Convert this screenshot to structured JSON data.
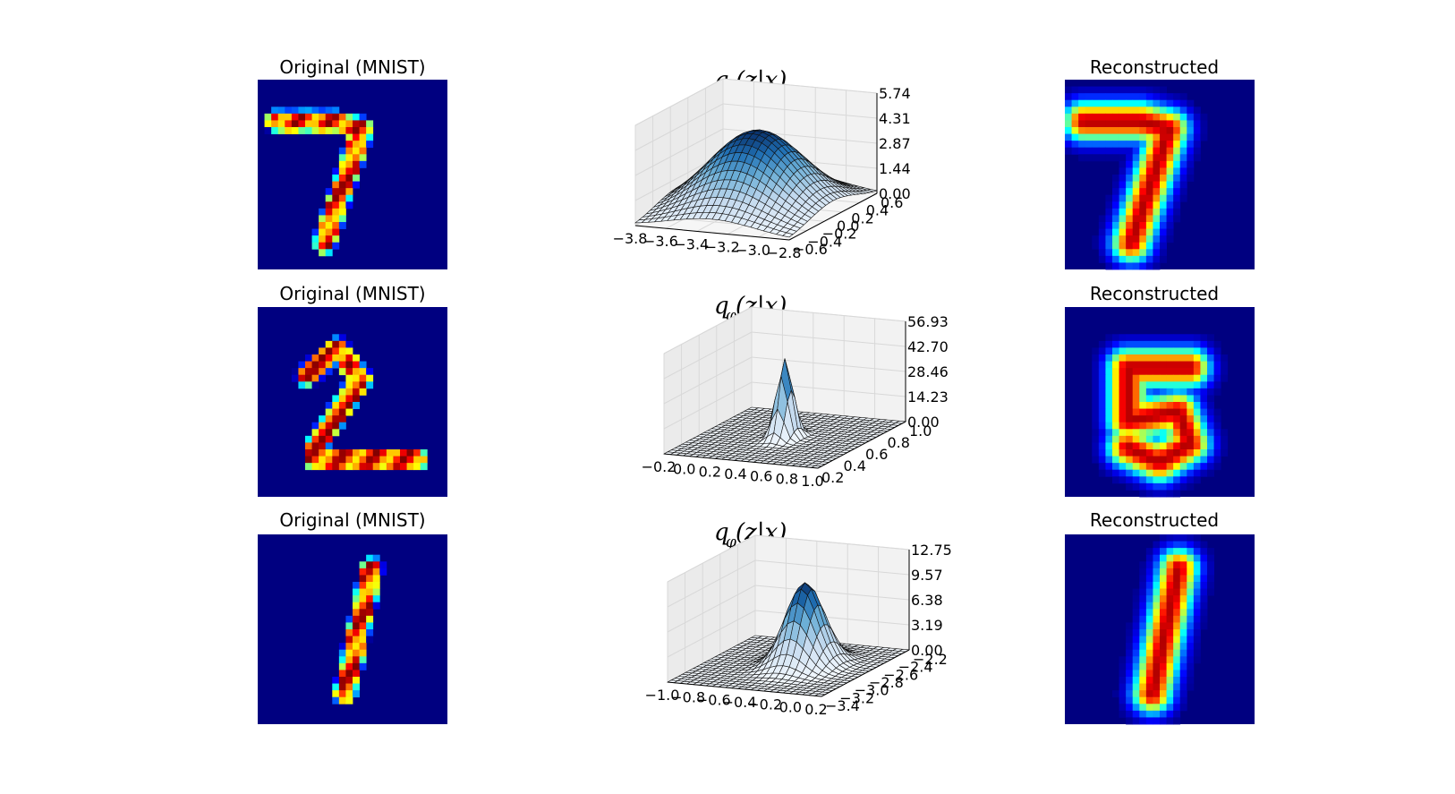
{
  "chart_data": [
    {
      "type": "heatmap",
      "title": "Original (MNIST)",
      "digit": "7",
      "kind": "original",
      "colormap": "jet"
    },
    {
      "type": "surface",
      "title_main": "q",
      "title_sub": "φ",
      "title_rest": "(z|x)",
      "x_ticks": [
        "−3.8",
        "−3.6",
        "−3.4",
        "−3.2",
        "−3.0",
        "−2.8"
      ],
      "y_ticks": [
        "−0.6",
        "−0.4",
        "−0.2",
        "0.0",
        "0.2",
        "0.4",
        "0.6"
      ],
      "z_ticks": [
        "0.00",
        "1.44",
        "2.87",
        "4.31",
        "5.74"
      ],
      "zlim": [
        0,
        5.74
      ],
      "peak": 4.5,
      "mu": [
        -3.3,
        0.0
      ],
      "sigma": [
        0.28,
        0.32
      ],
      "colormap": "Blues"
    },
    {
      "type": "heatmap",
      "title": "Reconstructed",
      "digit": "7",
      "kind": "reconstructed",
      "colormap": "jet"
    },
    {
      "type": "heatmap",
      "title": "Original (MNIST)",
      "digit": "2",
      "kind": "original",
      "colormap": "jet"
    },
    {
      "type": "surface",
      "title_main": "q",
      "title_sub": "φ",
      "title_rest": "(z|x)",
      "x_ticks": [
        "−0.2",
        "0.0",
        "0.2",
        "0.4",
        "0.6",
        "0.8",
        "1.0"
      ],
      "y_ticks": [
        "0.2",
        "0.4",
        "0.6",
        "0.8",
        "1.0"
      ],
      "z_ticks": [
        "0.00",
        "14.23",
        "28.46",
        "42.70",
        "56.93"
      ],
      "zlim": [
        0,
        56.93
      ],
      "peak": 45,
      "mu": [
        0.4,
        0.6
      ],
      "sigma": [
        0.05,
        0.05
      ],
      "colormap": "Blues"
    },
    {
      "type": "heatmap",
      "title": "Reconstructed",
      "digit": "5",
      "kind": "reconstructed",
      "colormap": "jet"
    },
    {
      "type": "heatmap",
      "title": "Original (MNIST)",
      "digit": "1",
      "kind": "original",
      "colormap": "jet"
    },
    {
      "type": "surface",
      "title_main": "q",
      "title_sub": "φ",
      "title_rest": "(z|x)",
      "x_ticks": [
        "−1.0",
        "−0.8",
        "−0.6",
        "−0.4",
        "−0.2",
        "0.0",
        "0.2"
      ],
      "y_ticks": [
        "−3.4",
        "−3.2",
        "−3.0",
        "−2.8",
        "−2.6",
        "−2.4",
        "−2.2"
      ],
      "z_ticks": [
        "0.00",
        "3.19",
        "6.38",
        "9.57",
        "12.75"
      ],
      "zlim": [
        0,
        12.75
      ],
      "peak": 10.5,
      "mu": [
        -0.3,
        -2.75
      ],
      "sigma": [
        0.13,
        0.15
      ],
      "colormap": "Blues"
    },
    {
      "type": "heatmap",
      "title": "Reconstructed",
      "digit": "1",
      "kind": "reconstructed",
      "colormap": "jet"
    }
  ]
}
